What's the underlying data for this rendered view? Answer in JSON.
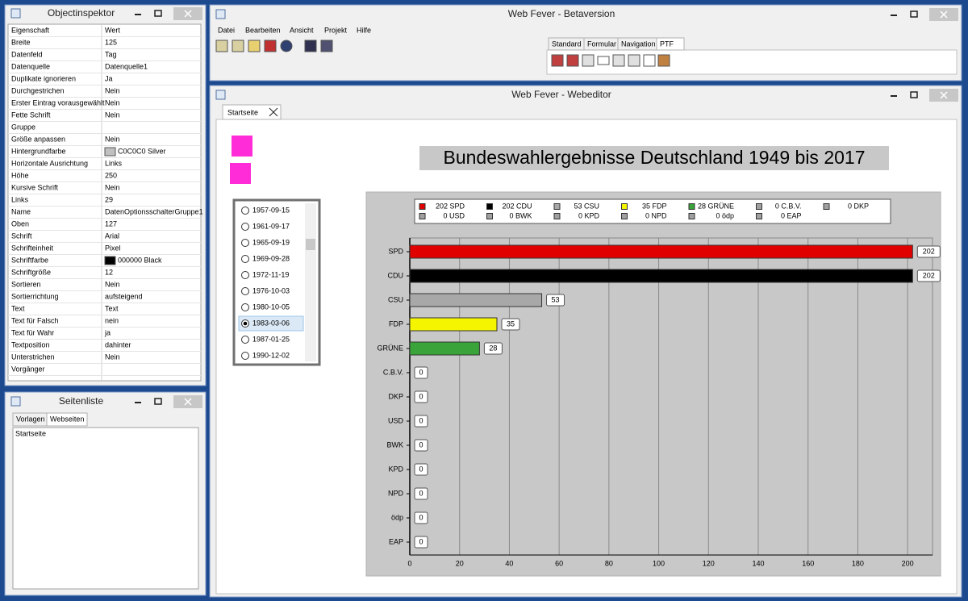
{
  "inspector": {
    "title": "Objectinspektor",
    "rows": [
      [
        "Eigenschaft",
        "Wert"
      ],
      [
        "Breite",
        "125"
      ],
      [
        "Datenfeld",
        "Tag"
      ],
      [
        "Datenquelle",
        "Datenquelle1"
      ],
      [
        "Duplikate ignorieren",
        "Ja"
      ],
      [
        "Durchgestrichen",
        "Nein"
      ],
      [
        "Erster Eintrag vorausgewählt",
        "Nein"
      ],
      [
        "Fette Schrift",
        "Nein"
      ],
      [
        "Gruppe"
      ],
      [
        "Größe anpassen",
        "Nein"
      ],
      [
        "Hintergrundfarbe",
        "C0C0C0 Silver"
      ],
      [
        "Horizontale Ausrichtung",
        "Links"
      ],
      [
        "Höhe",
        "250"
      ],
      [
        "Kursive Schrift",
        "Nein"
      ],
      [
        "Links",
        "29"
      ],
      [
        "Name",
        "DatenOptionsschalterGruppe1"
      ],
      [
        "Oben",
        "127"
      ],
      [
        "Schrift",
        "Arial"
      ],
      [
        "Schrifteinheit",
        "Pixel"
      ],
      [
        "Schriftfarbe",
        "000000 Black"
      ],
      [
        "Schriftgröße",
        "12"
      ],
      [
        "Sortieren",
        "Nein"
      ],
      [
        "Sortierrichtung",
        "aufsteigend"
      ],
      [
        "Text",
        "Text"
      ],
      [
        "Text für Falsch",
        "nein"
      ],
      [
        "Text für Wahr",
        "ja"
      ],
      [
        "Textposition",
        "dahinter"
      ],
      [
        "Unterstrichen",
        "Nein"
      ],
      [
        "Vorgänger"
      ]
    ]
  },
  "page_list": {
    "title": "Seitenliste",
    "tabs": [
      "Vorlagen",
      "Webseiten"
    ],
    "items": [
      "Startseite"
    ]
  },
  "main": {
    "title": "Web Fever - Betaversion",
    "menu": [
      "Datei",
      "Bearbeiten",
      "Ansicht",
      "Projekt",
      "Hilfe"
    ],
    "palette_tabs": [
      "Standard",
      "Formular",
      "Navigation",
      "PTF"
    ]
  },
  "editor": {
    "title": "Web Fever - Webeditor",
    "tab": "Startseite",
    "dates": [
      "1957-09-15",
      "1961-09-17",
      "1965-09-19",
      "1969-09-28",
      "1972-11-19",
      "1976-10-03",
      "1980-10-05",
      "1983-03-06",
      "1987-01-25",
      "1990-12-02"
    ],
    "selected": 7
  },
  "chart_data": {
    "type": "bar",
    "orientation": "horizontal",
    "title": "Bundeswahlergebnisse Deutschland 1949 bis 2017",
    "categories": [
      "SPD",
      "CDU",
      "CSU",
      "FDP",
      "GRÜNE",
      "C.B.V.",
      "DKP",
      "USD",
      "BWK",
      "KPD",
      "NPD",
      "ödp",
      "EAP"
    ],
    "values": [
      202,
      202,
      53,
      35,
      28,
      0,
      0,
      0,
      0,
      0,
      0,
      0,
      0
    ],
    "colors": [
      "#e00000",
      "#000000",
      "#a8a8a8",
      "#f5f500",
      "#3aa33a",
      "#a0a0a0",
      "#a0a0a0",
      "#a0a0a0",
      "#a0a0a0",
      "#a0a0a0",
      "#a0a0a0",
      "#a0a0a0",
      "#a0a0a0"
    ],
    "legend_labels": [
      "202 SPD",
      "202 CDU",
      "53 CSU",
      "35 FDP",
      "28 GRÜNE",
      "0 C.B.V.",
      "0 DKP",
      "0 USD",
      "0 BWK",
      "0 KPD",
      "0 NPD",
      "0 ödp",
      "0 EAP"
    ],
    "xlim": [
      0,
      210
    ],
    "xticks": [
      0,
      20,
      40,
      60,
      80,
      100,
      120,
      140,
      160,
      180,
      200
    ],
    "grid": true
  }
}
